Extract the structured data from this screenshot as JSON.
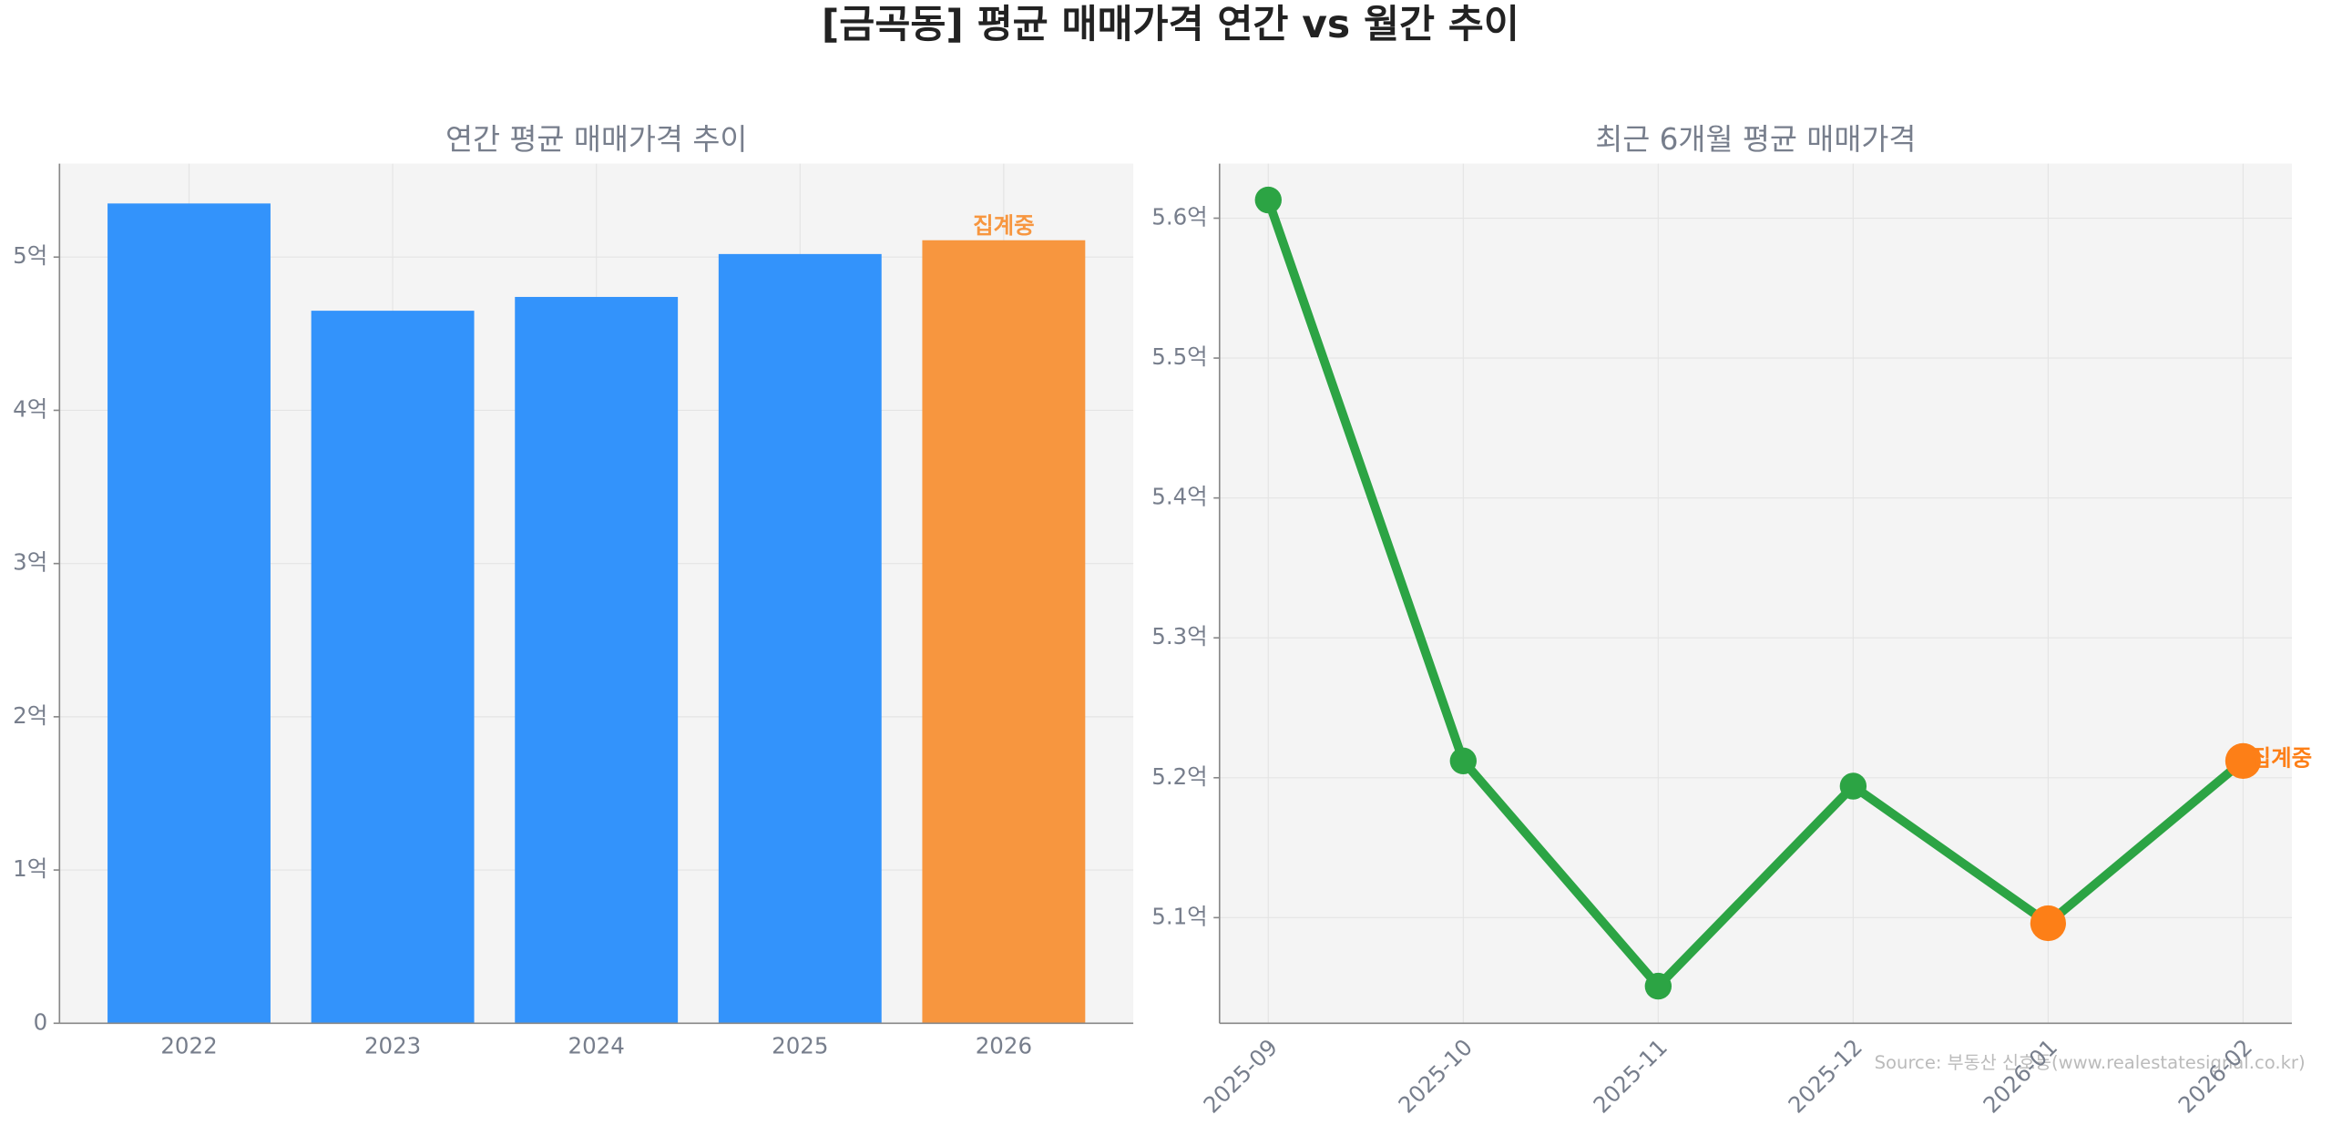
{
  "title": "[금곡동] 평균 매매가격 연간 vs 월간 추이",
  "source": "Source: 부동산 신호등(www.realestatesignal.co.kr)",
  "chart_data": [
    {
      "type": "bar",
      "title": "연간 평균 매매가격 추이",
      "categories": [
        "2022",
        "2023",
        "2024",
        "2025",
        "2026"
      ],
      "values": [
        5.35,
        4.65,
        4.74,
        5.02,
        5.11
      ],
      "colors": [
        "#3393fb",
        "#3393fb",
        "#3393fb",
        "#3393fb",
        "#f7963f"
      ],
      "annotation": "집계중",
      "ylim": [
        0,
        5.61
      ],
      "yticks": [
        0,
        {
          "value": 1,
          "label": "1억"
        },
        {
          "value": 2,
          "label": "2억"
        },
        {
          "value": 3,
          "label": "3억"
        },
        {
          "value": 4,
          "label": "4억"
        },
        {
          "value": 5,
          "label": "5억"
        }
      ],
      "grid": true
    },
    {
      "type": "line",
      "title": "최근 6개월 평균 매매가격",
      "categories": [
        "2025-09",
        "2025-10",
        "2025-11",
        "2025-12",
        "2026-01",
        "2026-02"
      ],
      "series": [
        {
          "color": "#2ca444",
          "values": [
            5.613,
            5.212,
            5.051,
            5.194,
            5.096,
            5.212
          ],
          "marker_colors": [
            "#2ca444",
            "#2ca444",
            "#2ca444",
            "#2ca444",
            "#fd7f17",
            "#fd7f17"
          ]
        }
      ],
      "annotation": "집계중",
      "ylim": [
        5.0245,
        5.639
      ],
      "yticks": [
        {
          "value": 5.1,
          "label": "5.1억"
        },
        {
          "value": 5.2,
          "label": "5.2억"
        },
        {
          "value": 5.3,
          "label": "5.3억"
        },
        {
          "value": 5.4,
          "label": "5.4억"
        },
        {
          "value": 5.5,
          "label": "5.5억"
        },
        {
          "value": 5.6,
          "label": "5.6억"
        }
      ],
      "grid": true
    }
  ]
}
